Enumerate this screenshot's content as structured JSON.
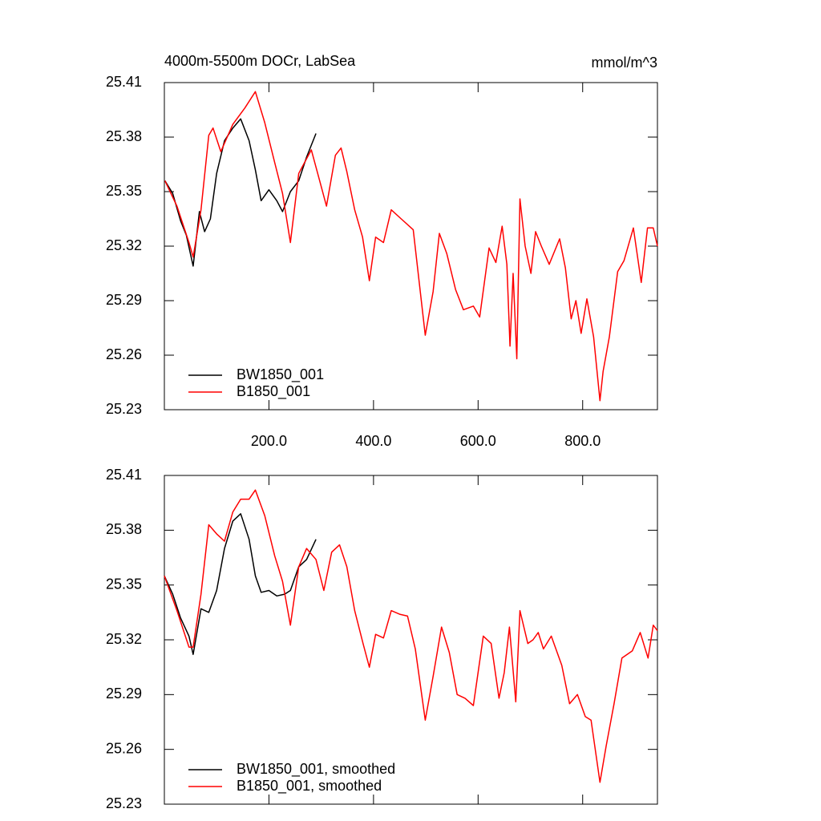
{
  "chart_data": [
    {
      "type": "line",
      "title": "4000m-5500m DOCr, LabSea",
      "units_label": "mmol/m^3",
      "xlim": [
        0,
        943
      ],
      "ylim": [
        25.23,
        25.41
      ],
      "xticks": [
        {
          "value": 200,
          "label": "200.0"
        },
        {
          "value": 400,
          "label": "400.0"
        },
        {
          "value": 600,
          "label": "600.0"
        },
        {
          "value": 800,
          "label": "800.0"
        }
      ],
      "yticks": [
        25.23,
        25.26,
        25.29,
        25.32,
        25.35,
        25.38,
        25.41
      ],
      "show_xtick_labels": true,
      "legend": "lower left",
      "series": [
        {
          "name": "BW1850_001",
          "color": "#000000",
          "x": [
            1,
            16,
            31,
            42,
            55,
            67,
            77,
            88,
            100,
            115,
            131,
            146,
            162,
            174,
            185,
            200,
            215,
            226,
            241,
            257,
            272,
            290
          ],
          "values": [
            25.356,
            25.349,
            25.334,
            25.326,
            25.309,
            25.339,
            25.328,
            25.335,
            25.36,
            25.378,
            25.385,
            25.39,
            25.378,
            25.362,
            25.345,
            25.351,
            25.345,
            25.339,
            25.35,
            25.356,
            25.369,
            25.382
          ]
        },
        {
          "name": "B1850_001",
          "color": "#ff0000",
          "x": [
            1,
            24,
            47,
            55,
            70,
            85,
            93,
            108,
            131,
            154,
            174,
            192,
            211,
            226,
            241,
            257,
            281,
            297,
            310,
            327,
            338,
            349,
            364,
            379,
            392,
            404,
            419,
            434,
            453,
            476,
            499,
            514,
            526,
            540,
            557,
            572,
            591,
            603,
            621,
            634,
            646,
            655,
            661,
            667,
            674,
            680,
            690,
            701,
            710,
            721,
            736,
            756,
            767,
            778,
            787,
            797,
            808,
            821,
            833,
            839,
            851,
            867,
            879,
            897,
            912,
            924,
            935,
            943
          ],
          "values": [
            25.356,
            25.342,
            25.322,
            25.314,
            25.34,
            25.381,
            25.385,
            25.372,
            25.387,
            25.396,
            25.405,
            25.388,
            25.366,
            25.349,
            25.322,
            25.36,
            25.373,
            25.356,
            25.342,
            25.37,
            25.374,
            25.361,
            25.34,
            25.325,
            25.301,
            25.325,
            25.322,
            25.34,
            25.335,
            25.329,
            25.271,
            25.295,
            25.327,
            25.316,
            25.296,
            25.285,
            25.287,
            25.281,
            25.319,
            25.311,
            25.331,
            25.31,
            25.265,
            25.305,
            25.258,
            25.346,
            25.32,
            25.305,
            25.328,
            25.32,
            25.31,
            25.324,
            25.308,
            25.28,
            25.29,
            25.272,
            25.291,
            25.27,
            25.235,
            25.251,
            25.27,
            25.306,
            25.312,
            25.33,
            25.3,
            25.33,
            25.33,
            25.32
          ]
        }
      ]
    },
    {
      "type": "line",
      "xlim": [
        0,
        943
      ],
      "ylim": [
        25.23,
        25.41
      ],
      "xticks": [
        200,
        400,
        600,
        800
      ],
      "yticks": [
        25.23,
        25.26,
        25.29,
        25.32,
        25.35,
        25.38,
        25.41
      ],
      "show_xtick_labels": false,
      "legend": "lower left",
      "series": [
        {
          "name": "BW1850_001, smoothed",
          "color": "#000000",
          "x": [
            0,
            16,
            31,
            47,
            55,
            70,
            85,
            100,
            115,
            131,
            146,
            162,
            174,
            185,
            200,
            215,
            230,
            241,
            257,
            272,
            290
          ],
          "values": [
            25.355,
            25.345,
            25.332,
            25.322,
            25.312,
            25.337,
            25.335,
            25.347,
            25.37,
            25.385,
            25.389,
            25.375,
            25.355,
            25.346,
            25.347,
            25.344,
            25.345,
            25.347,
            25.36,
            25.364,
            25.375
          ]
        },
        {
          "name": "B1850_001, smoothed",
          "color": "#ff0000",
          "x": [
            0,
            24,
            47,
            55,
            70,
            85,
            100,
            115,
            131,
            146,
            162,
            174,
            192,
            211,
            226,
            241,
            257,
            272,
            290,
            305,
            320,
            335,
            349,
            364,
            380,
            392,
            404,
            419,
            434,
            450,
            465,
            480,
            499,
            514,
            530,
            545,
            560,
            575,
            591,
            610,
            625,
            640,
            650,
            660,
            672,
            680,
            695,
            705,
            715,
            725,
            740,
            760,
            775,
            790,
            805,
            816,
            833,
            845,
            860,
            875,
            895,
            910,
            925,
            935,
            943
          ],
          "values": [
            25.355,
            25.336,
            25.316,
            25.316,
            25.345,
            25.383,
            25.378,
            25.374,
            25.39,
            25.397,
            25.397,
            25.402,
            25.388,
            25.366,
            25.352,
            25.328,
            25.36,
            25.37,
            25.364,
            25.347,
            25.368,
            25.372,
            25.36,
            25.336,
            25.318,
            25.305,
            25.323,
            25.321,
            25.336,
            25.334,
            25.333,
            25.315,
            25.276,
            25.3,
            25.327,
            25.313,
            25.29,
            25.288,
            25.284,
            25.322,
            25.318,
            25.288,
            25.302,
            25.327,
            25.286,
            25.336,
            25.318,
            25.32,
            25.324,
            25.315,
            25.322,
            25.306,
            25.285,
            25.29,
            25.278,
            25.276,
            25.242,
            25.262,
            25.285,
            25.31,
            25.314,
            25.324,
            25.31,
            25.328,
            25.325
          ]
        }
      ]
    }
  ]
}
